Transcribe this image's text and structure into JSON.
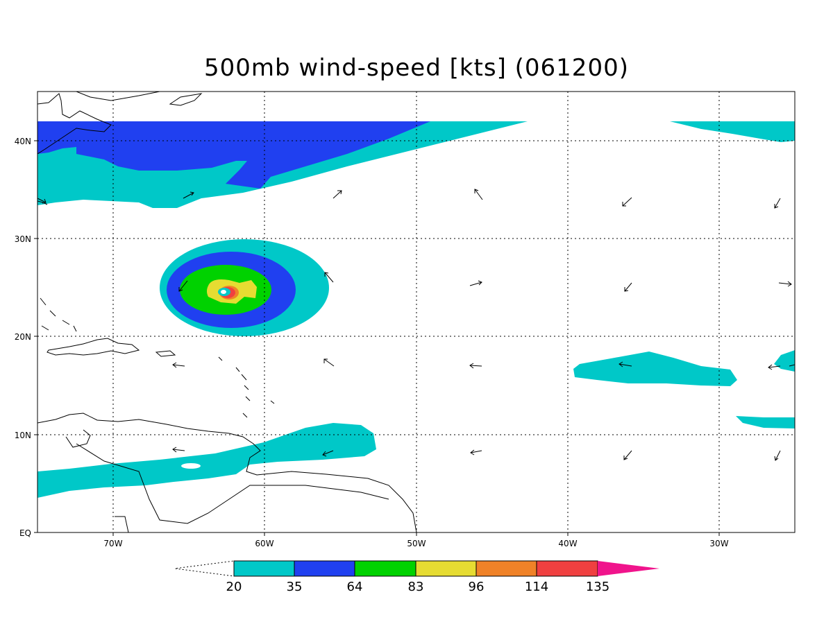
{
  "title": "500mb wind-speed [kts] (061200)",
  "axes": {
    "lon_labels": [
      "70W",
      "60W",
      "50W",
      "40W",
      "30W"
    ],
    "lat_labels": [
      "40N",
      "30N",
      "20N",
      "10N",
      "EQ"
    ]
  },
  "colorbar": {
    "levels": [
      "20",
      "35",
      "64",
      "83",
      "96",
      "114",
      "135"
    ],
    "colors": [
      "#00c8c8",
      "#2040f0",
      "#00d200",
      "#e6dc32",
      "#f08228",
      "#f04040",
      "#f0148c"
    ]
  },
  "map_extent": {
    "lon_min": -75,
    "lon_max": -25,
    "lat_min": 0,
    "lat_max": 45
  }
}
